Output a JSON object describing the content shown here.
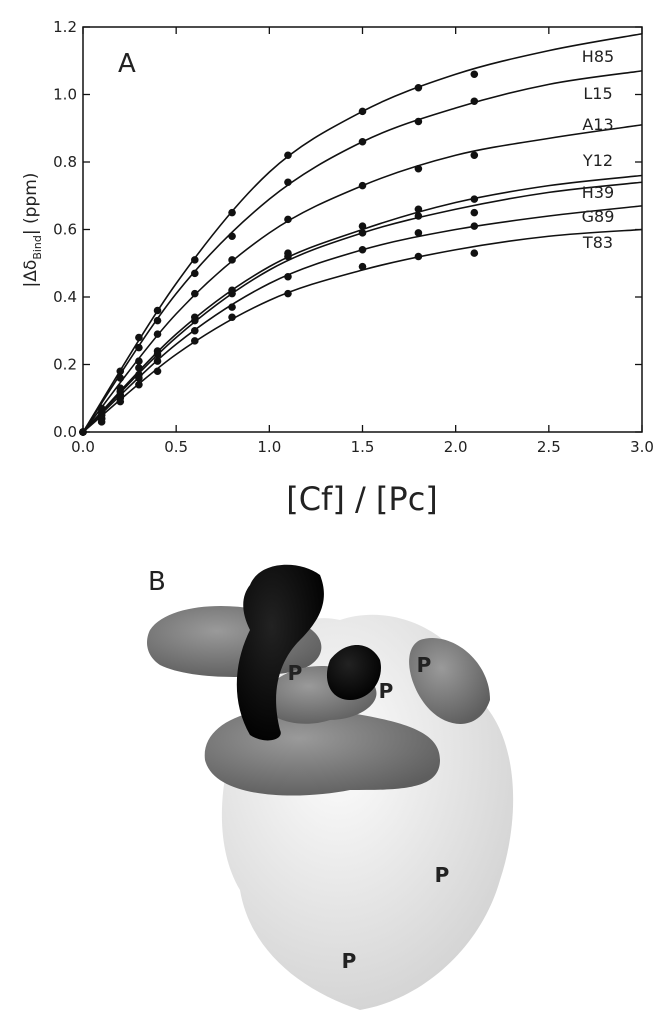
{
  "chart_data": {
    "type": "scatter",
    "panel_label": "A",
    "xlabel": "[Cf] / [Pc]",
    "ylabel": {
      "main": "|Δδ",
      "sub": "Bind",
      "rest": "| (ppm)"
    },
    "xlim": [
      0,
      3.0
    ],
    "ylim": [
      0,
      1.2
    ],
    "xticks": [
      {
        "value": 0,
        "label": "0.0"
      },
      {
        "value": 0.5,
        "label": "0.5"
      },
      {
        "value": 1,
        "label": "1.0"
      },
      {
        "value": 1.5,
        "label": "1.5"
      },
      {
        "value": 2,
        "label": "2.0"
      },
      {
        "value": 2.5,
        "label": "2.5"
      },
      {
        "value": 3,
        "label": "3.0"
      }
    ],
    "yticks": [
      {
        "value": 0,
        "label": "0.0"
      },
      {
        "value": 0.2,
        "label": "0.2"
      },
      {
        "value": 0.4,
        "label": "0.4"
      },
      {
        "value": 0.6,
        "label": "0.6"
      },
      {
        "value": 0.8,
        "label": "0.8"
      },
      {
        "value": 1,
        "label": "1.0"
      },
      {
        "value": 1.2,
        "label": "1.2"
      }
    ],
    "color": "#111111",
    "x": [
      0,
      0.1,
      0.2,
      0.3,
      0.4,
      0.6,
      0.8,
      1.1,
      1.5,
      1.8,
      2.1
    ],
    "fit_x": [
      0,
      0.5,
      1,
      1.5,
      2,
      2.5,
      3
    ],
    "series": [
      {
        "name": "H85",
        "values": [
          0,
          0.07,
          0.18,
          0.28,
          0.36,
          0.51,
          0.65,
          0.82,
          0.95,
          1.02,
          1.06
        ],
        "fit": [
          0,
          0.44,
          0.77,
          0.95,
          1.06,
          1.13,
          1.18
        ]
      },
      {
        "name": "L15",
        "values": [
          0,
          0.06,
          0.16,
          0.25,
          0.33,
          0.47,
          0.58,
          0.74,
          0.86,
          0.92,
          0.98
        ],
        "fit": [
          0,
          0.41,
          0.69,
          0.86,
          0.96,
          1.03,
          1.07
        ]
      },
      {
        "name": "A13",
        "values": [
          0,
          0.05,
          0.13,
          0.21,
          0.29,
          0.41,
          0.51,
          0.63,
          0.73,
          0.78,
          0.82
        ],
        "fit": [
          0,
          0.35,
          0.59,
          0.73,
          0.82,
          0.87,
          0.91
        ]
      },
      {
        "name": "Y12",
        "values": [
          0,
          0.05,
          0.12,
          0.19,
          0.24,
          0.34,
          0.42,
          0.53,
          0.61,
          0.66,
          0.69
        ],
        "fit": [
          0,
          0.29,
          0.49,
          0.6,
          0.68,
          0.73,
          0.76
        ]
      },
      {
        "name": "H39",
        "values": [
          0,
          0.04,
          0.11,
          0.17,
          0.23,
          0.33,
          0.41,
          0.52,
          0.59,
          0.64,
          0.65
        ],
        "fit": [
          0,
          0.28,
          0.48,
          0.59,
          0.66,
          0.71,
          0.74
        ]
      },
      {
        "name": "G89",
        "values": [
          0,
          0.04,
          0.1,
          0.16,
          0.21,
          0.3,
          0.37,
          0.46,
          0.54,
          0.59,
          0.61
        ],
        "fit": [
          0,
          0.26,
          0.44,
          0.54,
          0.6,
          0.64,
          0.67
        ]
      },
      {
        "name": "T83",
        "values": [
          0,
          0.03,
          0.09,
          0.14,
          0.18,
          0.27,
          0.34,
          0.41,
          0.49,
          0.52,
          0.53
        ],
        "fit": [
          0,
          0.23,
          0.39,
          0.48,
          0.54,
          0.58,
          0.6
        ]
      }
    ]
  },
  "figure_b": {
    "panel_label": "B",
    "site_labels": [
      "P",
      "P",
      "P",
      "P",
      "P"
    ]
  }
}
